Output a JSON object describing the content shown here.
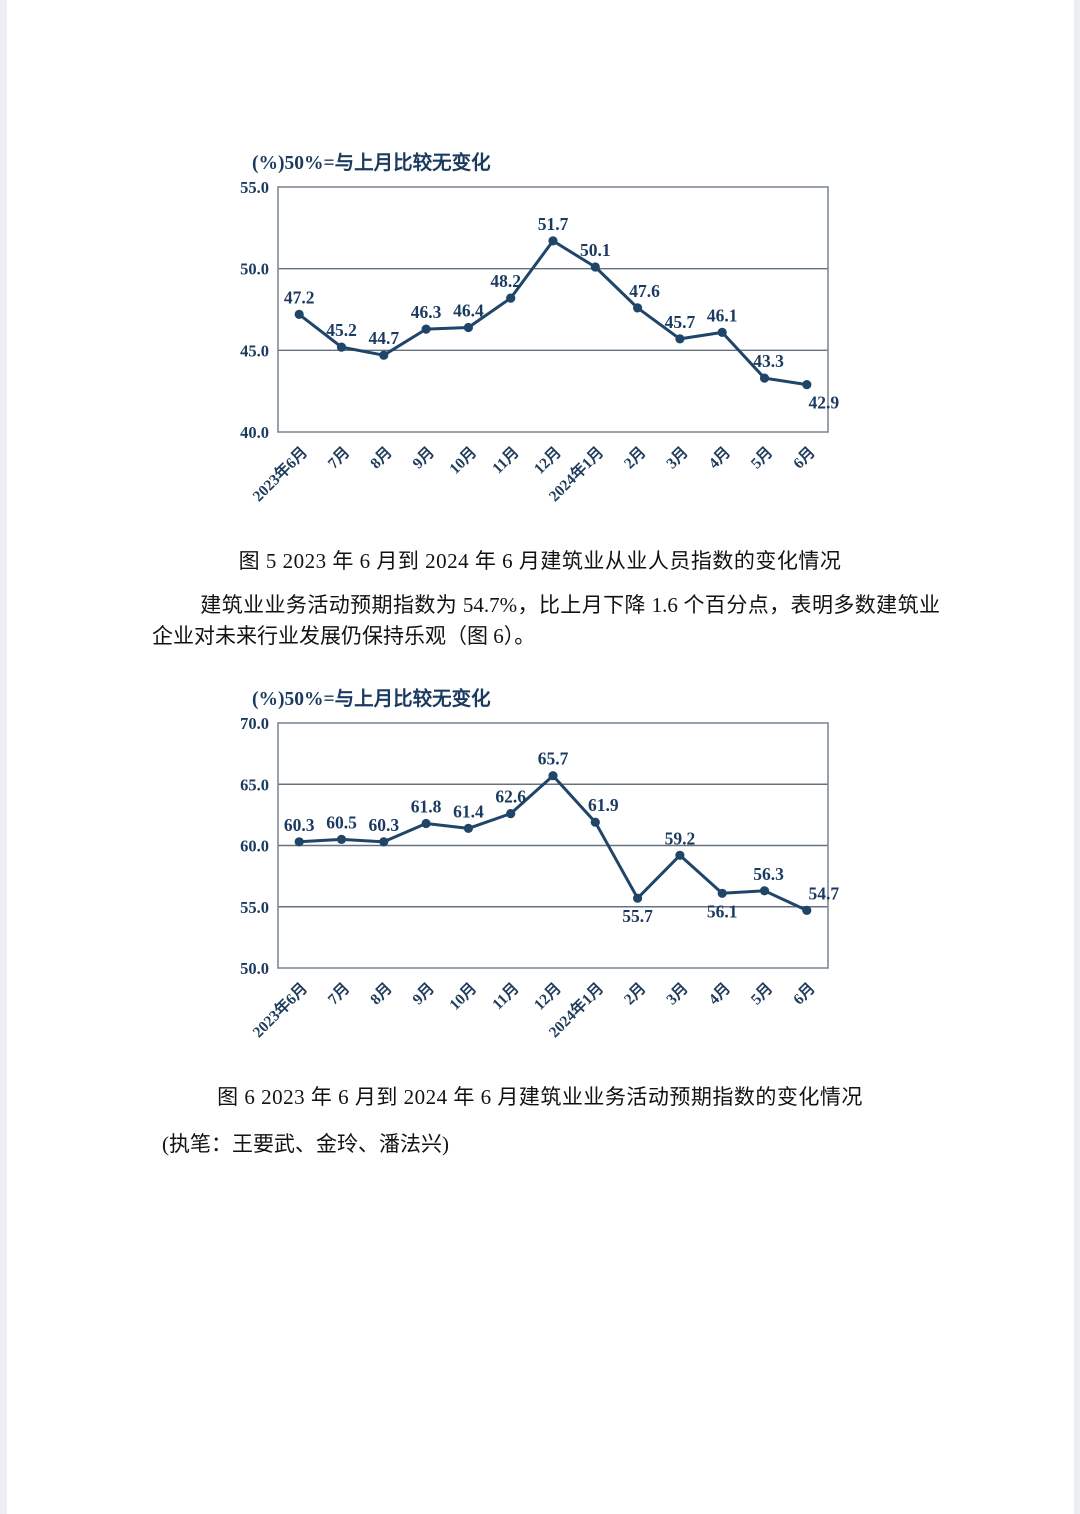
{
  "document": {
    "captions": {
      "fig5": "图 5  2023 年 6 月到 2024 年 6 月建筑业从业人员指数的变化情况",
      "fig6": "图 6  2023 年 6 月到 2024 年 6 月建筑业业务活动预期指数的变化情况"
    },
    "paragraph": "建筑业业务活动预期指数为 54.7%，比上月下降 1.6 个百分点，表明多数建筑业企业对未来行业发展仍保持乐观（图 6）。",
    "byline": "(执笔：王要武、金玲、潘法兴)"
  },
  "colors": {
    "series_line": "#1f4569",
    "data_label": "#1b3a5f",
    "gridline": "#64727f",
    "frame": "#7e8a96",
    "body_text": "#121212"
  },
  "chart_data": [
    {
      "type": "line",
      "title": "(%)50%=与上月比较无变化",
      "categories": [
        "2023年6月",
        "7月",
        "8月",
        "9月",
        "10月",
        "11月",
        "12月",
        "2024年1月",
        "2月",
        "3月",
        "4月",
        "5月",
        "6月"
      ],
      "values": [
        47.2,
        45.2,
        44.7,
        46.3,
        46.4,
        48.2,
        51.7,
        50.1,
        47.6,
        45.7,
        46.1,
        43.3,
        42.9
      ],
      "ylim": [
        40.0,
        55.0
      ],
      "yticks": [
        55.0,
        50.0,
        45.0,
        40.0
      ],
      "grid": true,
      "legend": "none",
      "marker": "circle",
      "label_pos": [
        "above",
        "above",
        "above",
        "above",
        "above",
        "above",
        "above",
        "above",
        "above",
        "above",
        "above",
        "above",
        "below"
      ],
      "label_dx": [
        0,
        0,
        0,
        0,
        0,
        -5,
        0,
        0,
        7,
        0,
        0,
        4,
        17
      ]
    },
    {
      "type": "line",
      "title": "(%)50%=与上月比较无变化",
      "categories": [
        "2023年6月",
        "7月",
        "8月",
        "9月",
        "10月",
        "11月",
        "12月",
        "2024年1月",
        "2月",
        "3月",
        "4月",
        "5月",
        "6月"
      ],
      "values": [
        60.3,
        60.5,
        60.3,
        61.8,
        61.4,
        62.6,
        65.7,
        61.9,
        55.7,
        59.2,
        56.1,
        56.3,
        54.7
      ],
      "ylim": [
        50.0,
        70.0
      ],
      "yticks": [
        70.0,
        65.0,
        60.0,
        55.0,
        50.0
      ],
      "grid": true,
      "legend": "none",
      "marker": "circle",
      "label_pos": [
        "above",
        "above",
        "above",
        "above",
        "above",
        "above",
        "above",
        "above",
        "below",
        "above",
        "below",
        "above",
        "above"
      ],
      "label_dx": [
        0,
        0,
        0,
        0,
        0,
        0,
        0,
        8,
        0,
        0,
        0,
        4,
        17
      ]
    }
  ]
}
